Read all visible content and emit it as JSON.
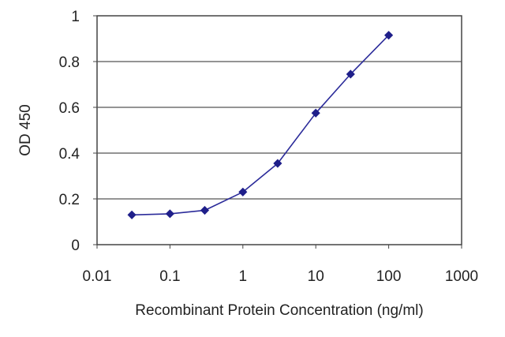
{
  "chart_data": {
    "type": "line",
    "title": "",
    "xlabel": "Recombinant Protein Concentration (ng/ml)",
    "ylabel": "OD 450",
    "xscale": "log",
    "xlim": [
      0.01,
      1000
    ],
    "ylim": [
      0,
      1
    ],
    "xticks": [
      "0.01",
      "0.1",
      "1",
      "10",
      "100",
      "1000"
    ],
    "yticks": [
      "0",
      "0.2",
      "0.4",
      "0.6",
      "0.8",
      "1"
    ],
    "grid": "horizontal",
    "legend": "none",
    "series": [
      {
        "color": "#2b2b9a",
        "x": [
          0.03,
          0.1,
          0.3,
          1,
          3,
          10,
          30,
          100
        ],
        "y": [
          0.13,
          0.135,
          0.15,
          0.23,
          0.355,
          0.575,
          0.745,
          0.915
        ]
      }
    ]
  }
}
